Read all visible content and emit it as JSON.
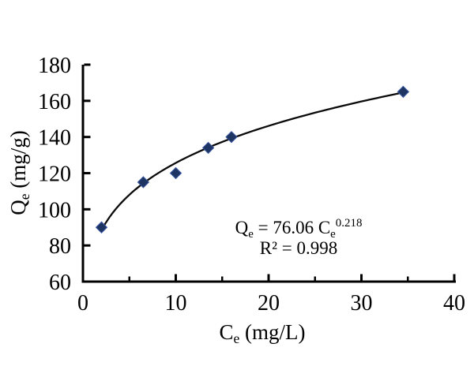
{
  "figure": {
    "background_color": "#ffffff",
    "text_color": "#000000"
  },
  "chart_data": {
    "type": "scatter",
    "title": "",
    "xlabel_parts": [
      {
        "t": "C"
      },
      {
        "t": "e",
        "style": "sub"
      },
      {
        "t": " (mg/L)"
      }
    ],
    "ylabel_parts": [
      {
        "t": "Q"
      },
      {
        "t": "e",
        "style": "sub"
      },
      {
        "t": " (mg/g)"
      }
    ],
    "xlim": [
      0,
      40
    ],
    "ylim": [
      60,
      180
    ],
    "x_major_ticks": [
      0,
      10,
      20,
      30,
      40
    ],
    "x_minor_ticks": [
      5,
      15,
      25,
      35
    ],
    "y_major_ticks": [
      60,
      80,
      100,
      120,
      140,
      160,
      180
    ],
    "grid": false,
    "legend": "none",
    "points": [
      {
        "x": 2,
        "y": 90
      },
      {
        "x": 6.5,
        "y": 115
      },
      {
        "x": 10,
        "y": 120
      },
      {
        "x": 13.5,
        "y": 134
      },
      {
        "x": 16,
        "y": 140
      },
      {
        "x": 34.5,
        "y": 165
      }
    ],
    "fit_curve": {
      "model": "power",
      "coefficient": 76.06,
      "exponent": 0.218,
      "x_range": [
        2,
        34.5
      ]
    },
    "annotation": {
      "lines": [
        {
          "parts": [
            {
              "t": "Q"
            },
            {
              "t": "e",
              "style": "sub"
            },
            {
              "t": " = 76.06 C"
            },
            {
              "t": "e",
              "style": "sub"
            },
            {
              "t": "0.218",
              "style": "sup"
            }
          ]
        },
        {
          "parts": [
            {
              "t": "R² = 0.998"
            }
          ]
        }
      ]
    },
    "marker": {
      "shape": "diamond",
      "color": "#1e3563",
      "edge_color": "#3a57a0"
    },
    "curve_color": "#0a0a0a",
    "axis_color": "#000000"
  }
}
